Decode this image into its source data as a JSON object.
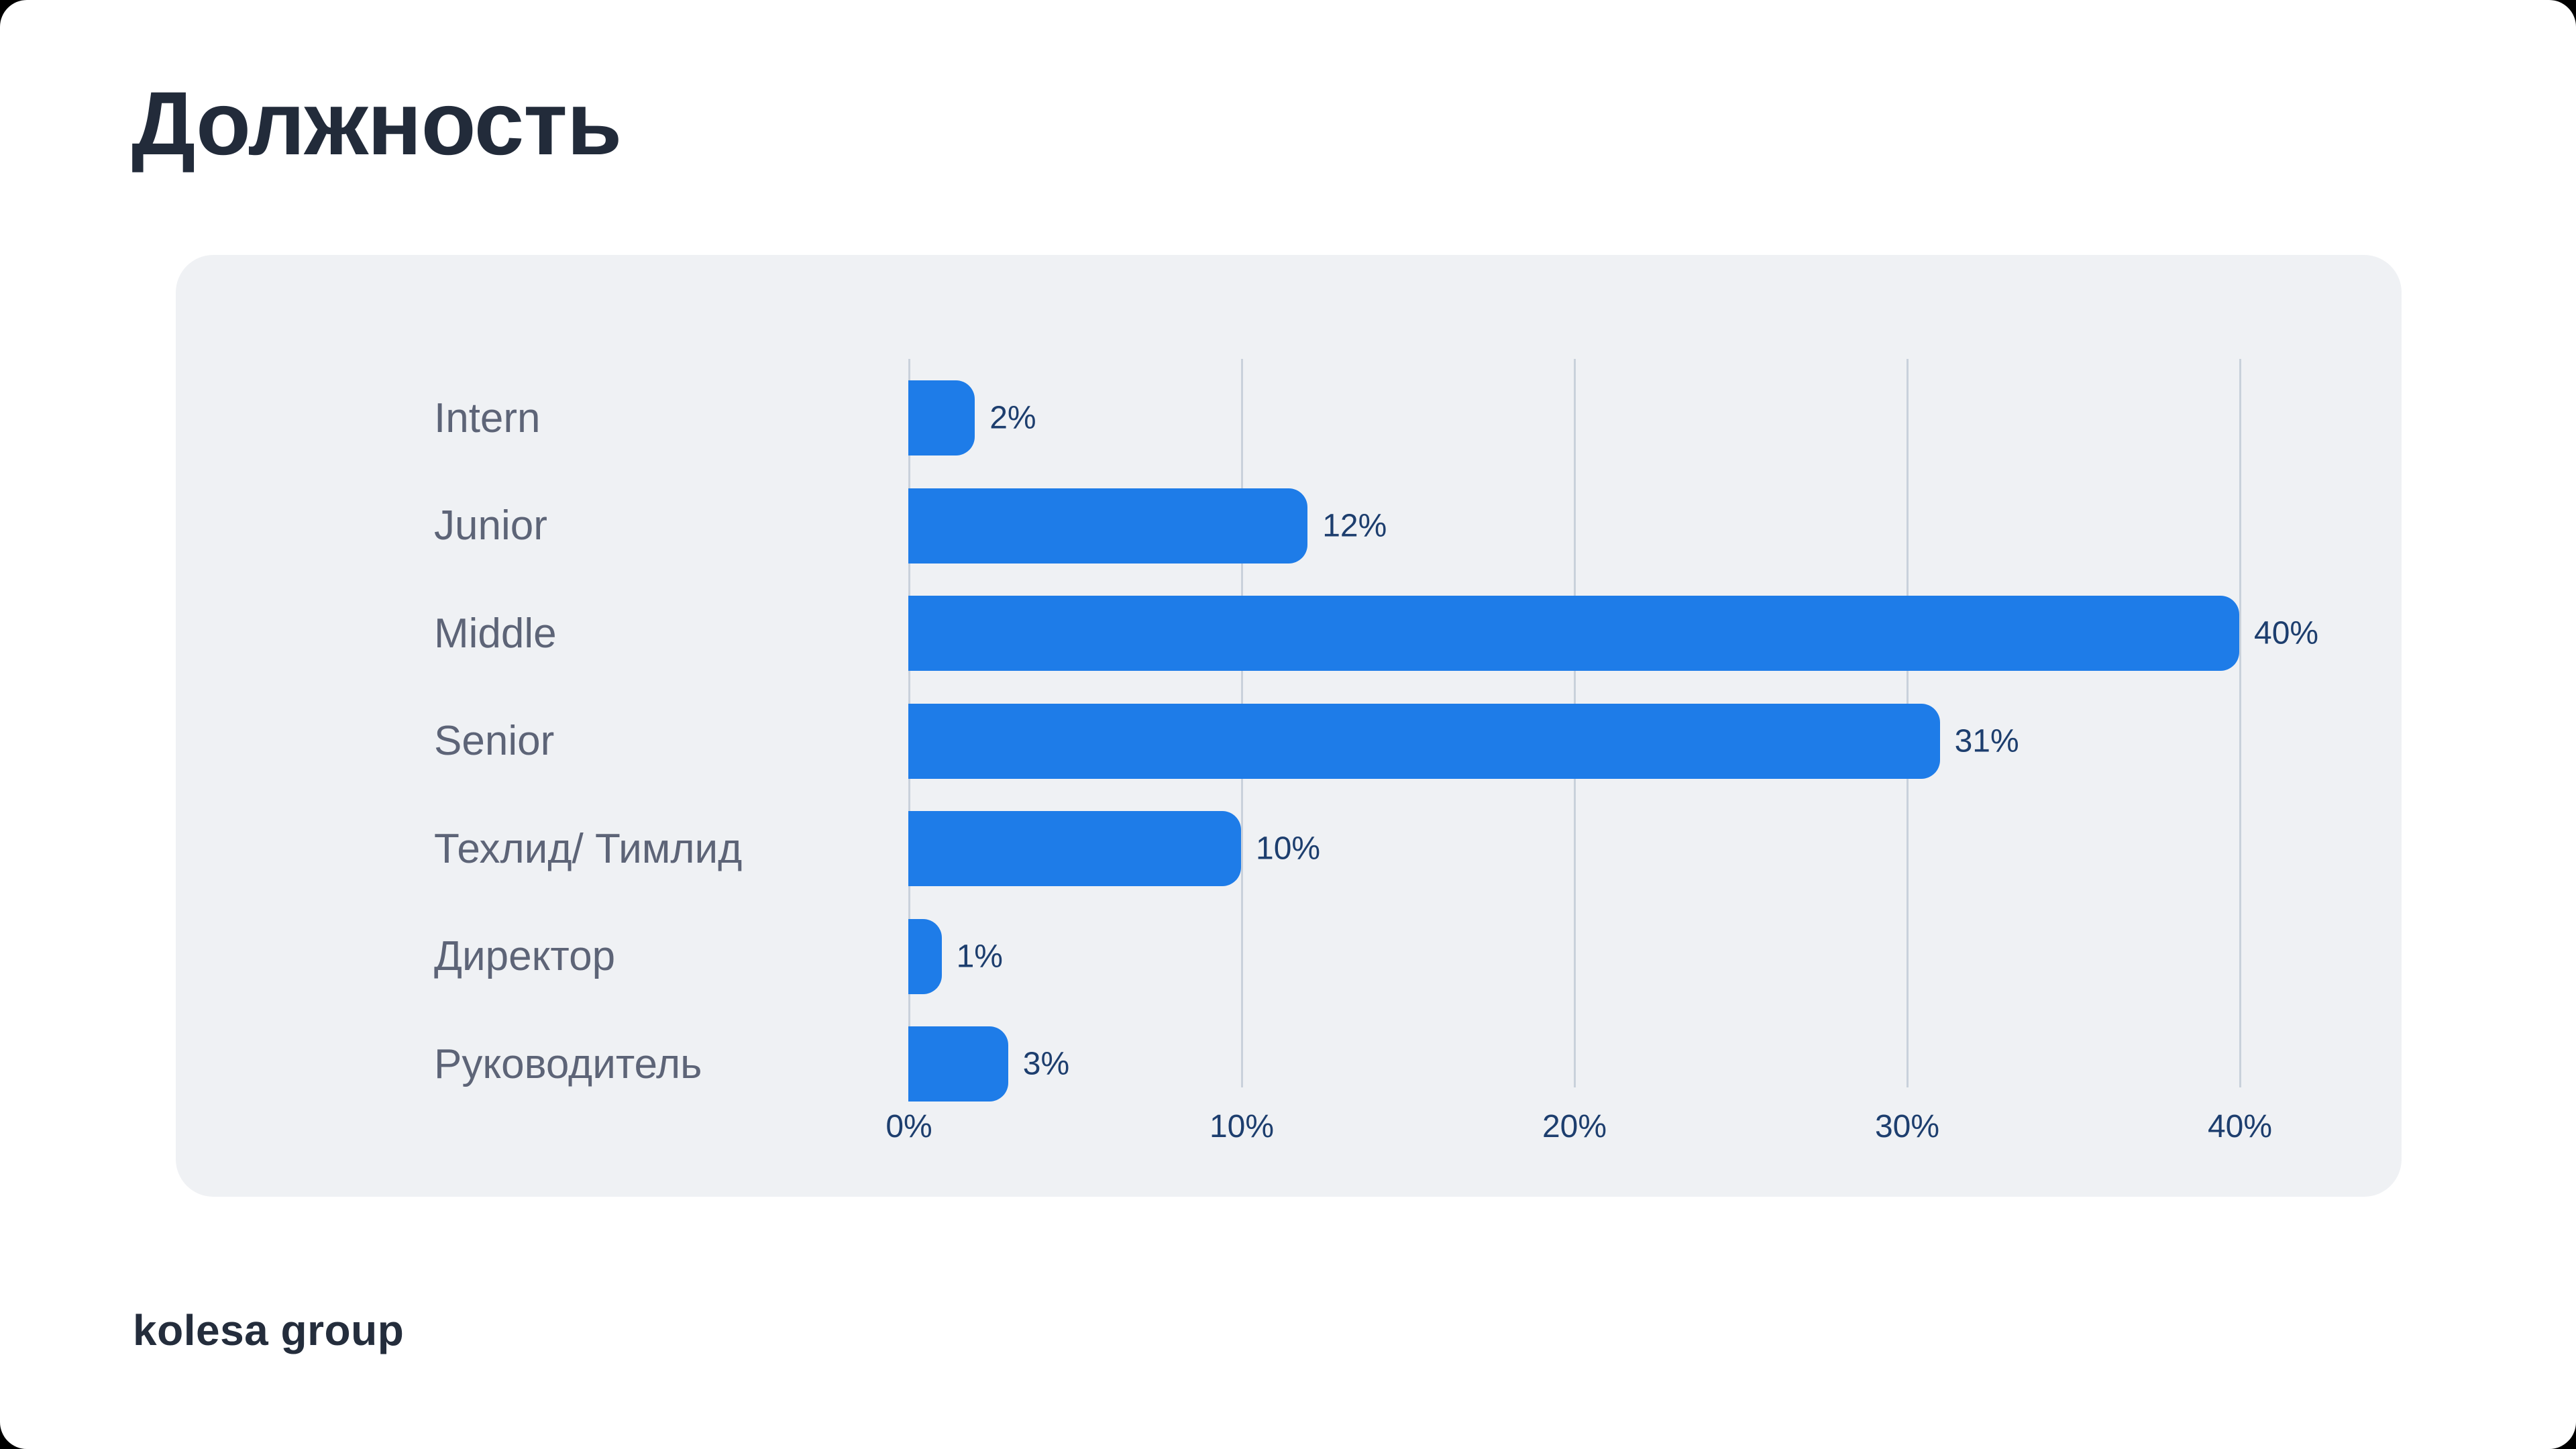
{
  "title": "Должность",
  "logo_text": "kolesa group",
  "colors": {
    "page_background": "#FFFFFF",
    "outside_background": "#000000",
    "panel_background": "#EFF1F4",
    "bar_color": "#1E7CE8",
    "gridline_color": "#C9D1DB",
    "title_color": "#222B3A",
    "category_label_color": "#5D6477",
    "value_label_color": "#1D3E6E",
    "logo_color": "#242D3C"
  },
  "chart_data": {
    "type": "bar",
    "orientation": "horizontal",
    "title": "Должность",
    "categories": [
      "Intern",
      "Junior",
      "Middle",
      "Senior",
      "Техлид/ Тимлид",
      "Директор",
      "Руководитель"
    ],
    "values": [
      2,
      12,
      40,
      31,
      10,
      1,
      3
    ],
    "value_labels": [
      "2%",
      "12%",
      "40%",
      "31%",
      "10%",
      "1%",
      "3%"
    ],
    "x_ticks": [
      "0%",
      "10%",
      "20%",
      "30%",
      "40%"
    ],
    "x_tick_values": [
      0,
      10,
      20,
      30,
      40
    ],
    "xlim": [
      0,
      45
    ],
    "xlabel": "",
    "ylabel": "",
    "grid": true,
    "legend": false,
    "bar_color": "#1E7CE8"
  }
}
